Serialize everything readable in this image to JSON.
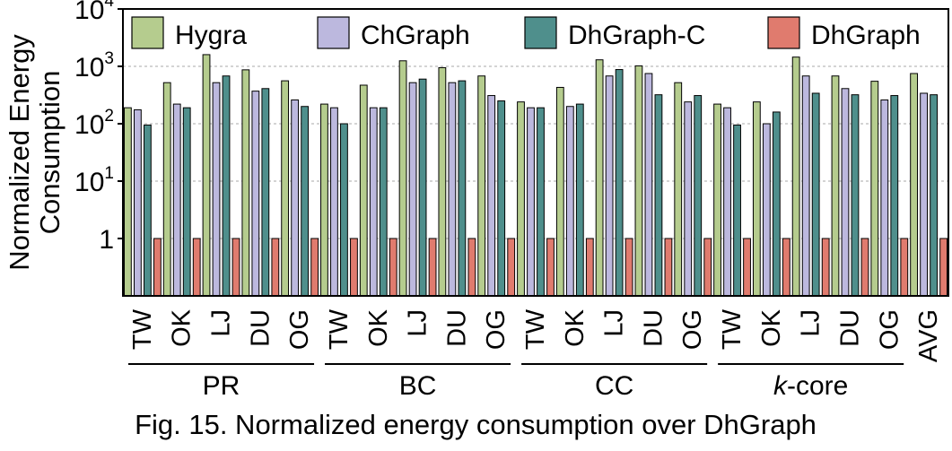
{
  "chart_data": {
    "type": "bar",
    "ylabel_lines": [
      "Normalized Energy",
      "Consumption"
    ],
    "yscale": "log",
    "ylim": [
      0.1,
      10000
    ],
    "yticks": [
      {
        "value": 1,
        "base": "1",
        "exp": ""
      },
      {
        "value": 10,
        "base": "10",
        "exp": "1"
      },
      {
        "value": 100,
        "base": "10",
        "exp": "2"
      },
      {
        "value": 1000,
        "base": "10",
        "exp": "3"
      },
      {
        "value": 10000,
        "base": "10",
        "exp": "4"
      }
    ],
    "grid": "horizontal-dashed",
    "legend_position": "top",
    "categories": [
      "TW",
      "OK",
      "LJ",
      "DU",
      "OG",
      "TW",
      "OK",
      "LJ",
      "DU",
      "OG",
      "TW",
      "OK",
      "LJ",
      "DU",
      "OG",
      "TW",
      "OK",
      "LJ",
      "DU",
      "OG",
      "AVG"
    ],
    "groups": [
      {
        "label": "PR",
        "italic_prefix": "",
        "start": 0,
        "end": 4
      },
      {
        "label": "BC",
        "italic_prefix": "",
        "start": 5,
        "end": 9
      },
      {
        "label": "CC",
        "italic_prefix": "",
        "start": 10,
        "end": 14
      },
      {
        "label": "-core",
        "italic_prefix": "k",
        "start": 15,
        "end": 19
      }
    ],
    "series": [
      {
        "name": "Hygra",
        "color": "#b5cc8e",
        "values": [
          190,
          520,
          1600,
          870,
          560,
          220,
          470,
          1250,
          950,
          680,
          240,
          430,
          1300,
          1020,
          520,
          220,
          240,
          1450,
          680,
          550,
          750
        ]
      },
      {
        "name": "ChGraph",
        "color": "#bcb8de",
        "values": [
          175,
          220,
          520,
          370,
          260,
          190,
          190,
          520,
          520,
          310,
          190,
          200,
          680,
          750,
          240,
          190,
          100,
          680,
          410,
          260,
          340
        ]
      },
      {
        "name": "DhGraph-C",
        "color": "#4f8f8c",
        "values": [
          95,
          190,
          680,
          410,
          200,
          100,
          190,
          600,
          560,
          250,
          190,
          220,
          880,
          320,
          310,
          95,
          160,
          340,
          320,
          310,
          320
        ]
      },
      {
        "name": "DhGraph",
        "color": "#e07b6e",
        "values": [
          1,
          1,
          1,
          1,
          1,
          1,
          1,
          1,
          1,
          1,
          1,
          1,
          1,
          1,
          1,
          1,
          1,
          1,
          1,
          1,
          1
        ]
      }
    ]
  },
  "caption": "Fig. 15. Normalized energy consumption over DhGraph"
}
